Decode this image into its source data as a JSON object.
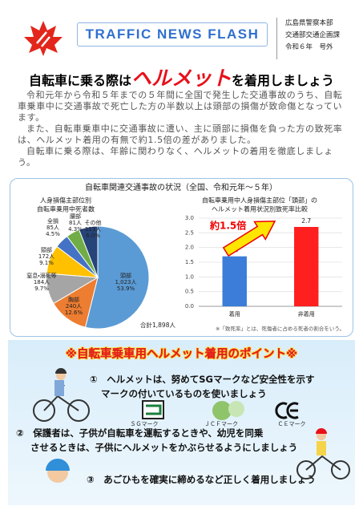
{
  "header": {
    "title": "TRAFFIC NEWS FLASH",
    "org": [
      "広島県警察本部",
      "交通部交通企画課",
      "令和６年　号外"
    ]
  },
  "headline": {
    "before": "自転車に乗る際は",
    "emphasis": "ヘルメット",
    "after": "を着用しましょう"
  },
  "body": [
    "令和元年から令和５年までの５年間に全国で発生した交通事故のうち、自転車乗車中に交通事故で死亡した方の半数以上は頭部の損傷が致命傷となっています。",
    "また、自転車乗車中に交通事故に遭い、主に頭部に損傷を負った方の致死率は、ヘルメット着用の有無で約1.5倍の差がありました。",
    "自転車に乗る際は、年齢に関わりなく、ヘルメットの着用を徹底しましょう。"
  ],
  "chart_box_title": "自転車関連交通事故の状況（全国、令和元年～５年）",
  "chart_data": [
    {
      "type": "pie",
      "title": [
        "人身損傷主部位別",
        "自転車乗用中死者数"
      ],
      "categories": [
        "頭部",
        "胸部",
        "窒息・溺死等",
        "頸部",
        "全損",
        "腰部",
        "その他"
      ],
      "values": [
        1023,
        240,
        184,
        172,
        85,
        81,
        113
      ],
      "value_labels": [
        "1,023人",
        "240人",
        "184人",
        "172人",
        "85人",
        "81人",
        "113人"
      ],
      "percents": [
        53.9,
        12.6,
        9.7,
        9.1,
        4.5,
        4.3,
        6.0
      ],
      "percent_labels": [
        "53.9%",
        "12.6%",
        "9.7%",
        "9.1%",
        "4.5%",
        "4.3%",
        "6.0%"
      ],
      "colors": [
        "#5b9bd5",
        "#ed7d31",
        "#a5a5a5",
        "#ffc000",
        "#4472c4",
        "#70ad47",
        "#264478"
      ],
      "total_label": "合計1,898人"
    },
    {
      "type": "bar",
      "title": [
        "自転車乗用中人身損傷主部位「頭部」の",
        "ヘルメット着用状況別致死率比較"
      ],
      "categories": [
        "着用",
        "非着用"
      ],
      "values": [
        1.7,
        2.7
      ],
      "colors": [
        "#3b7dd8",
        "#ff1f1f"
      ],
      "ylim": [
        0,
        3
      ],
      "yticks": [
        {
          "value": 0,
          "label": "0.0"
        },
        0.5,
        {
          "value": 1,
          "label": "1.0"
        },
        1.5,
        {
          "value": 2,
          "label": "2.0"
        },
        2.5,
        {
          "value": 3,
          "label": "3.0"
        }
      ],
      "grid": true,
      "annotation": "約1.5倍",
      "note": "※「致死率」とは、死傷者に占める死者の割合をいう。"
    }
  ],
  "points": {
    "title": "※自転車乗車用ヘルメット着用のポイント※",
    "items": [
      [
        "①　ヘルメットは、努めてSGマークなど安全性を示す",
        "マークの付いているものを使いましょう"
      ],
      [
        "②　保護者は、子供が自転車を運転するときや、幼児を同乗",
        "させるときは、子供にヘルメットをかぶらせるようにしましょう"
      ],
      [
        "③　あごひもを確実に締めるなど正しく着用しましょう"
      ]
    ],
    "marks": [
      "ＳＧマーク",
      "ＪＣＦマーク",
      "ＣＥマーク"
    ]
  }
}
